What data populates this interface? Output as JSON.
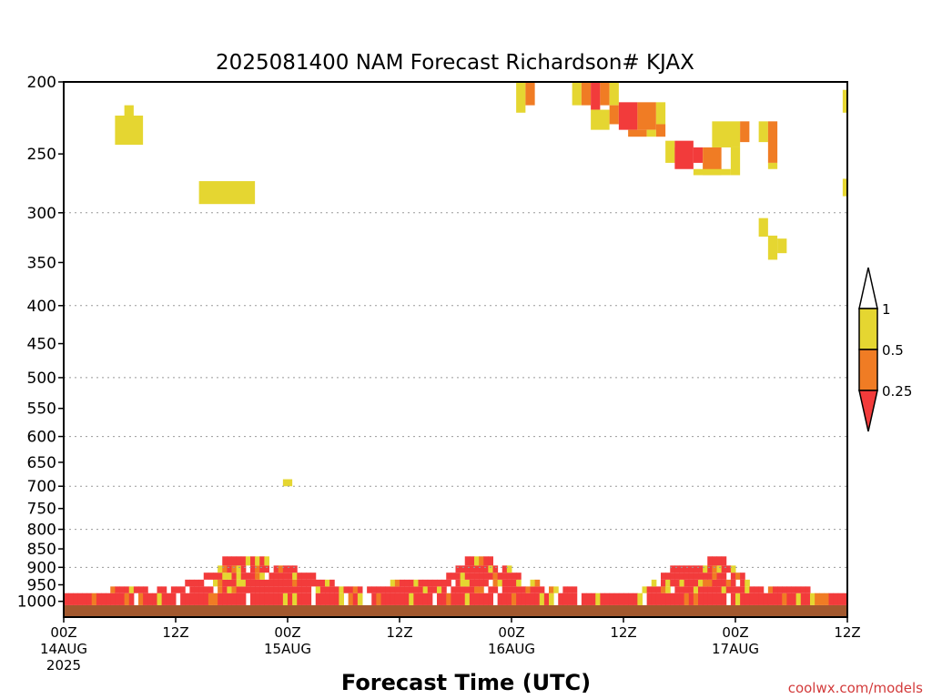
{
  "chart_data": {
    "type": "heatmap",
    "title": "2025081400 NAM Forecast Richardson# KJAX",
    "xlabel": "Forecast Time (UTC)",
    "ylabel": "",
    "credit": "coolwx.com/models",
    "x_unit": "forecast hour",
    "xlim": [
      0,
      84
    ],
    "y_unit": "hPa",
    "ylim": [
      1050,
      200
    ],
    "y_scale": "log",
    "grid": "dotted horizontal at 300, 400, 500, 600, 700, 800, 900 hPa",
    "y_ticks": [
      "200",
      "250",
      "300",
      "350",
      "400",
      "450",
      "500",
      "550",
      "600",
      "650",
      "700",
      "750",
      "800",
      "850",
      "900",
      "950",
      "1000"
    ],
    "x_ticks": [
      {
        "hour": 0,
        "lines": [
          "00Z",
          "14AUG",
          "2025"
        ]
      },
      {
        "hour": 12,
        "lines": [
          "12Z"
        ]
      },
      {
        "hour": 24,
        "lines": [
          "00Z",
          "15AUG"
        ]
      },
      {
        "hour": 36,
        "lines": [
          "12Z"
        ]
      },
      {
        "hour": 48,
        "lines": [
          "00Z",
          "16AUG"
        ]
      },
      {
        "hour": 60,
        "lines": [
          "12Z"
        ]
      },
      {
        "hour": 72,
        "lines": [
          "00Z",
          "17AUG"
        ]
      },
      {
        "hour": 84,
        "lines": [
          "12Z"
        ]
      }
    ],
    "legend": {
      "placement": "right",
      "bins": [
        {
          "label": "Ri < 0.25",
          "color": "#f23b3b"
        },
        {
          "label": "0.25 – 0.5",
          "color": "#f07c24"
        },
        {
          "label": "0.5 – 1",
          "color": "#e5d631"
        },
        {
          "label": "Ri > 1",
          "color": "#ffffff"
        }
      ],
      "labels": [
        "1",
        "0.5",
        "0.25"
      ]
    },
    "cells": [
      {
        "x0": 5.5,
        "x1": 8.5,
        "p0": 243,
        "p1": 222,
        "cat": 0.75
      },
      {
        "x0": 6.5,
        "x1": 7.5,
        "p0": 222,
        "p1": 215,
        "cat": 0.75
      },
      {
        "x0": 14.5,
        "x1": 20.5,
        "p0": 292,
        "p1": 272,
        "cat": 0.75
      },
      {
        "x0": 23.5,
        "x1": 24.5,
        "p0": 700,
        "p1": 685,
        "cat": 0.75
      },
      {
        "x0": 48.5,
        "x1": 49.5,
        "p0": 220,
        "p1": 200,
        "cat": 0.75
      },
      {
        "x0": 49.5,
        "x1": 50.5,
        "p0": 215,
        "p1": 200,
        "cat": 0.4
      },
      {
        "x0": 54.5,
        "x1": 55.5,
        "p0": 215,
        "p1": 200,
        "cat": 0.75
      },
      {
        "x0": 55.5,
        "x1": 56.5,
        "p0": 215,
        "p1": 200,
        "cat": 0.4
      },
      {
        "x0": 56.5,
        "x1": 57.5,
        "p0": 218,
        "p1": 200,
        "cat": 0.1
      },
      {
        "x0": 57.5,
        "x1": 58.5,
        "p0": 215,
        "p1": 200,
        "cat": 0.4
      },
      {
        "x0": 58.5,
        "x1": 59.5,
        "p0": 215,
        "p1": 200,
        "cat": 0.75
      },
      {
        "x0": 56.5,
        "x1": 58.5,
        "p0": 232,
        "p1": 218,
        "cat": 0.75
      },
      {
        "x0": 58.5,
        "x1": 59.5,
        "p0": 228,
        "p1": 215,
        "cat": 0.4
      },
      {
        "x0": 59.5,
        "x1": 61.5,
        "p0": 232,
        "p1": 213,
        "cat": 0.1
      },
      {
        "x0": 61.5,
        "x1": 63.5,
        "p0": 232,
        "p1": 213,
        "cat": 0.4
      },
      {
        "x0": 63.5,
        "x1": 64.5,
        "p0": 228,
        "p1": 213,
        "cat": 0.75
      },
      {
        "x0": 60.5,
        "x1": 62.5,
        "p0": 237,
        "p1": 232,
        "cat": 0.4
      },
      {
        "x0": 62.5,
        "x1": 63.5,
        "p0": 237,
        "p1": 232,
        "cat": 0.75
      },
      {
        "x0": 63.5,
        "x1": 64.5,
        "p0": 237,
        "p1": 228,
        "cat": 0.4
      },
      {
        "x0": 64.5,
        "x1": 65.5,
        "p0": 257,
        "p1": 240,
        "cat": 0.75
      },
      {
        "x0": 65.5,
        "x1": 66.5,
        "p0": 257,
        "p1": 245,
        "cat": 0.4
      },
      {
        "x0": 65.5,
        "x1": 67.5,
        "p0": 262,
        "p1": 240,
        "cat": 0.1
      },
      {
        "x0": 67.5,
        "x1": 68.5,
        "p0": 257,
        "p1": 245,
        "cat": 0.1
      },
      {
        "x0": 68.5,
        "x1": 70.5,
        "p0": 267,
        "p1": 245,
        "cat": 0.4
      },
      {
        "x0": 67.5,
        "x1": 71.5,
        "p0": 267,
        "p1": 262,
        "cat": 0.75
      },
      {
        "x0": 69.5,
        "x1": 72.5,
        "p0": 245,
        "p1": 226,
        "cat": 0.75
      },
      {
        "x0": 71.5,
        "x1": 72.5,
        "p0": 267,
        "p1": 245,
        "cat": 0.75
      },
      {
        "x0": 72.5,
        "x1": 73.5,
        "p0": 241,
        "p1": 226,
        "cat": 0.4
      },
      {
        "x0": 74.5,
        "x1": 75.5,
        "p0": 241,
        "p1": 226,
        "cat": 0.75
      },
      {
        "x0": 75.5,
        "x1": 76.5,
        "p0": 257,
        "p1": 226,
        "cat": 0.4
      },
      {
        "x0": 75.5,
        "x1": 76.5,
        "p0": 262,
        "p1": 257,
        "cat": 0.75
      },
      {
        "x0": 74.5,
        "x1": 75.5,
        "p0": 323,
        "p1": 305,
        "cat": 0.75
      },
      {
        "x0": 75.5,
        "x1": 76.5,
        "p0": 347,
        "p1": 322,
        "cat": 0.75
      },
      {
        "x0": 76.5,
        "x1": 77.5,
        "p0": 340,
        "p1": 325,
        "cat": 0.75
      },
      {
        "x0": 83.5,
        "x1": 84,
        "p0": 220,
        "p1": 205,
        "cat": 0.75
      },
      {
        "x0": 83.5,
        "x1": 84,
        "p0": 285,
        "p1": 270,
        "cat": 0.75
      }
    ]
  },
  "bands": [
    {
      "p0": 1012,
      "p1": 1050,
      "color": "#a2582e",
      "label": "ground"
    },
    {
      "p0": 975,
      "p1": 1012,
      "cat": 0.1,
      "x0": 0,
      "x1": 84
    },
    {
      "p0": 955,
      "p1": 975,
      "cat": 0.1,
      "x0": 5,
      "x1": 55
    },
    {
      "p0": 955,
      "p1": 975,
      "cat": 0.1,
      "x0": 62,
      "x1": 80
    },
    {
      "p0": 935,
      "p1": 955,
      "cat": 0.1,
      "x0": 13,
      "x1": 29
    },
    {
      "p0": 935,
      "p1": 955,
      "cat": 0.1,
      "x0": 35,
      "x1": 51
    },
    {
      "p0": 935,
      "p1": 955,
      "cat": 0.1,
      "x0": 63,
      "x1": 74
    },
    {
      "p0": 915,
      "p1": 935,
      "cat": 0.1,
      "x0": 15,
      "x1": 27
    },
    {
      "p0": 915,
      "p1": 935,
      "cat": 0.1,
      "x0": 41,
      "x1": 49
    },
    {
      "p0": 915,
      "p1": 935,
      "cat": 0.1,
      "x0": 64,
      "x1": 73
    },
    {
      "p0": 895,
      "p1": 915,
      "cat": 0.1,
      "x0": 16,
      "x1": 25
    },
    {
      "p0": 895,
      "p1": 915,
      "cat": 0.1,
      "x0": 42,
      "x1": 48
    },
    {
      "p0": 895,
      "p1": 915,
      "cat": 0.1,
      "x0": 65,
      "x1": 72
    },
    {
      "p0": 870,
      "p1": 895,
      "cat": 0.1,
      "x0": 17,
      "x1": 22
    },
    {
      "p0": 870,
      "p1": 895,
      "cat": 0.1,
      "x0": 43,
      "x1": 46
    },
    {
      "p0": 870,
      "p1": 895,
      "cat": 0.1,
      "x0": 69,
      "x1": 71
    }
  ]
}
